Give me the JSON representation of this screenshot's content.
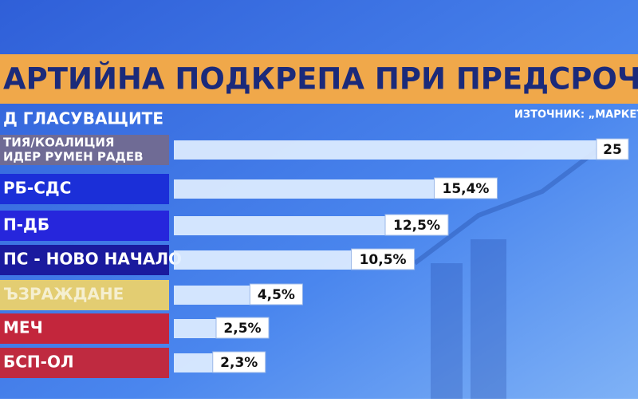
{
  "chart_data": {
    "type": "bar",
    "title": "АРТИЙНА ПОДКРЕПА ПРИ ПРЕДСРОЧЕН ВО",
    "subtitle": "Д ГЛАСУВАЩИТЕ",
    "source": "ИЗТОЧНИК: „МАРКЕТ Л",
    "categories": [
      [
        "ТИЯ/КОАЛИЦИЯ",
        "ИДЕР РУМЕН РАДЕВ"
      ],
      "РБ-СДС",
      "П-ДБ",
      "ПС - НОВО НАЧАЛО",
      "ЪЗРАЖДАНЕ",
      "МЕЧ",
      "БСП-ОЛ"
    ],
    "colors": [
      "#6f6b95",
      "#1b2fd8",
      "#2626dc",
      "#1a1a9e",
      "#e3cd72",
      "#c3263c",
      "#bf2a40"
    ],
    "values": [
      25,
      15.4,
      12.5,
      10.5,
      4.5,
      2.5,
      2.3
    ],
    "value_labels": [
      "25",
      "15,4%",
      "12,5%",
      "10,5%",
      "4,5%",
      "2,5%",
      "2,3%"
    ]
  }
}
